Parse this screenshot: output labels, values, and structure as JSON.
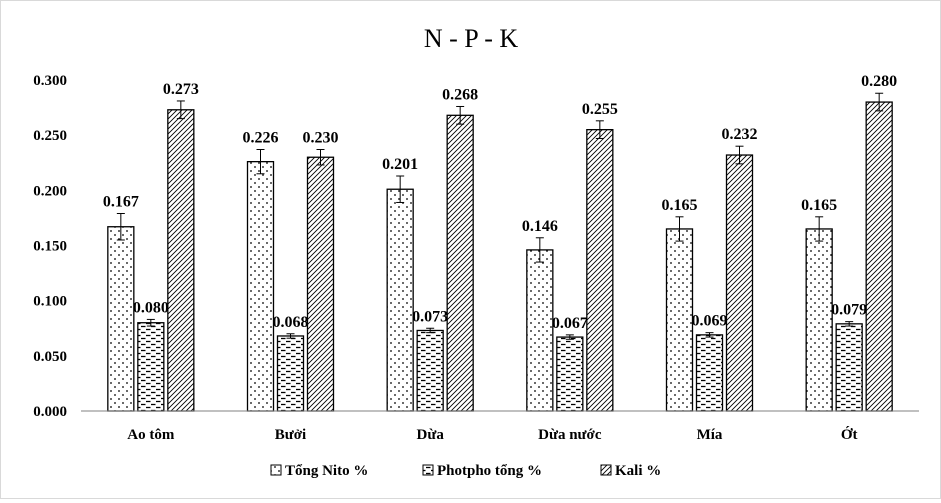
{
  "chart_data": {
    "type": "bar",
    "title": "N - P - K",
    "xlabel": "",
    "ylabel": "",
    "ylim": [
      0,
      0.3
    ],
    "yticks": [
      "0.000",
      "0.050",
      "0.100",
      "0.150",
      "0.200",
      "0.250",
      "0.300"
    ],
    "grid": false,
    "legend_position": "bottom",
    "categories": [
      "Ao tôm",
      "Bưởi",
      "Dừa",
      "Dừa nước",
      "Mía",
      "Ớt"
    ],
    "series": [
      {
        "name": "Tổng Nito %",
        "pattern": "dots",
        "values": [
          0.167,
          0.226,
          0.201,
          0.146,
          0.165,
          0.165
        ],
        "labels": [
          "0.167",
          "0.226",
          "0.201",
          "0.146",
          "0.165",
          "0.165"
        ],
        "errors": [
          0.012,
          0.011,
          0.012,
          0.011,
          0.011,
          0.011
        ]
      },
      {
        "name": "Photpho tổng %",
        "pattern": "dashes",
        "values": [
          0.08,
          0.068,
          0.073,
          0.067,
          0.069,
          0.079
        ],
        "labels": [
          "0.080",
          "0.068",
          "0.073",
          "0.067",
          "0.069",
          "0.079"
        ],
        "errors": [
          0.003,
          0.002,
          0.002,
          0.002,
          0.002,
          0.002
        ]
      },
      {
        "name": "Kali %",
        "pattern": "diagonal",
        "values": [
          0.273,
          0.23,
          0.268,
          0.255,
          0.232,
          0.28
        ],
        "labels": [
          "0.273",
          "0.230",
          "0.268",
          "0.255",
          "0.232",
          "0.280"
        ],
        "errors": [
          0.008,
          0.007,
          0.008,
          0.008,
          0.008,
          0.008
        ]
      }
    ],
    "colors": {
      "bar_fill": "#ffffff",
      "bar_stroke": "#000000",
      "text": "#000000",
      "border": "#d9d9d9"
    }
  }
}
